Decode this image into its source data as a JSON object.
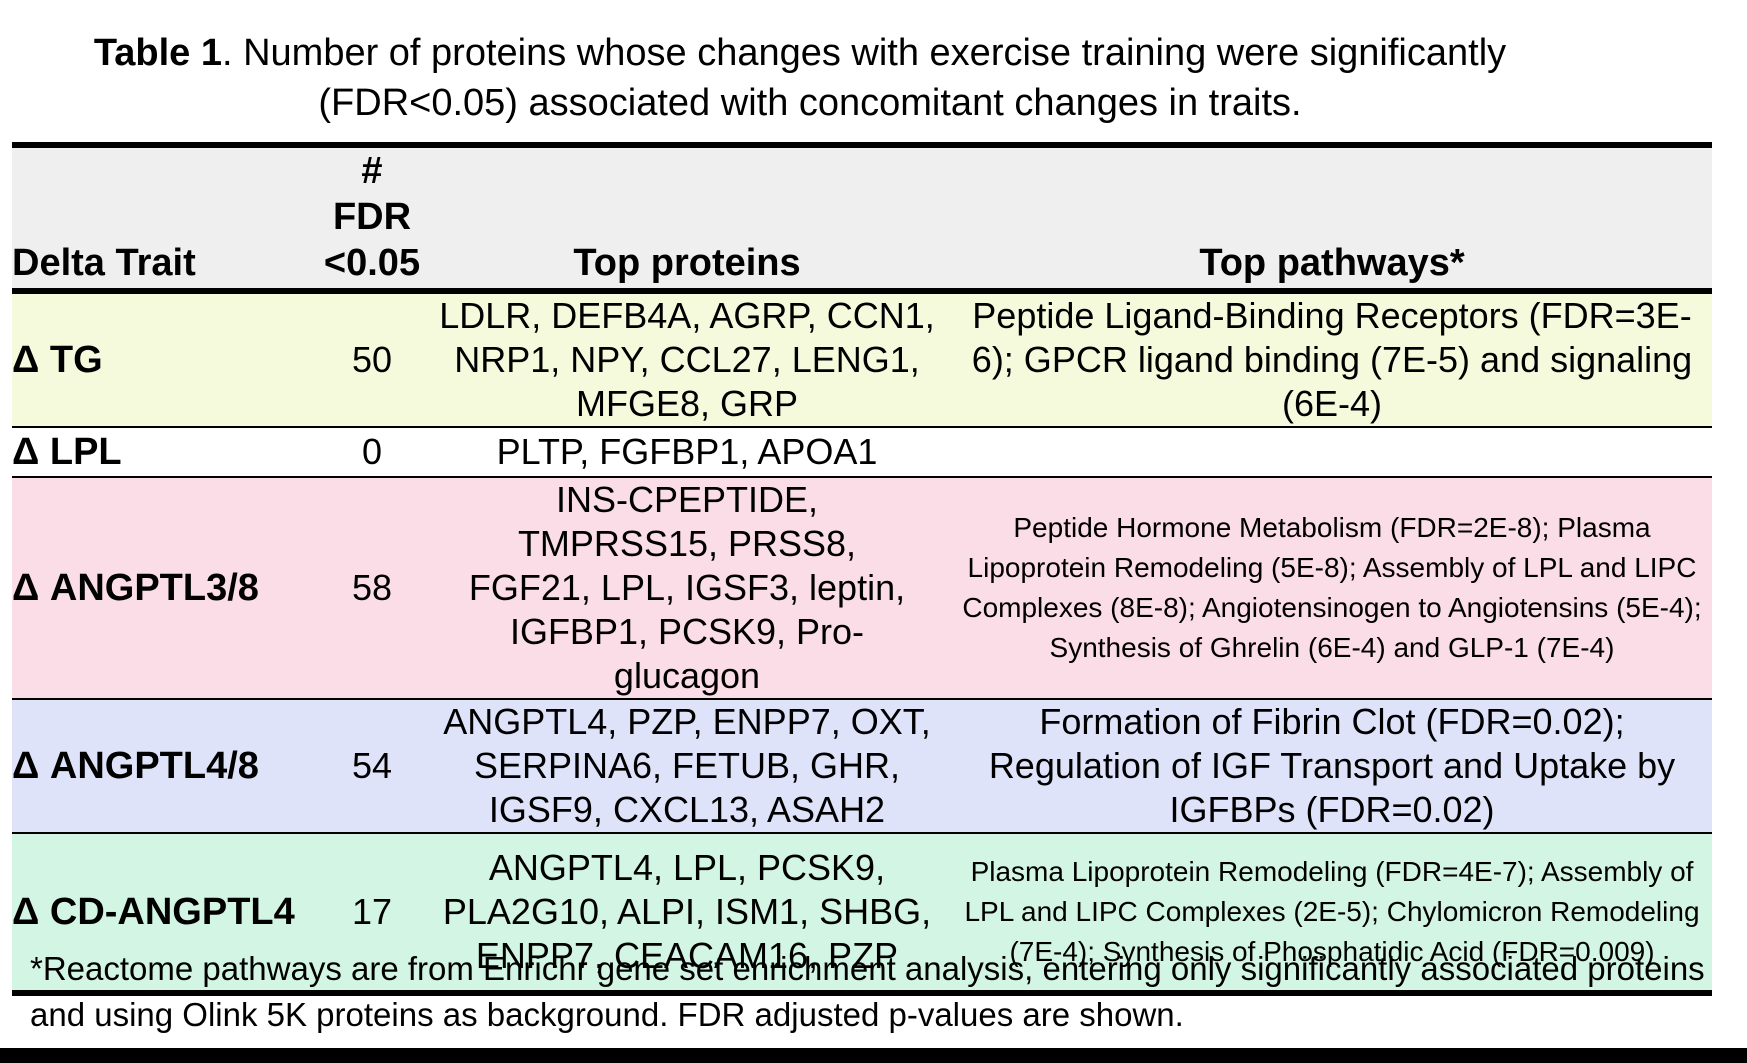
{
  "caption": {
    "label": "Table 1",
    "text1": ". Number of proteins whose changes with exercise training were significantly",
    "text2": "(FDR<0.05) associated with concomitant changes in traits."
  },
  "header": {
    "trait": "Delta Trait",
    "fdr_line1": "# FDR",
    "fdr_line2": "<0.05",
    "proteins": "Top proteins",
    "pathways": "Top pathways*"
  },
  "rows": [
    {
      "trait": "Δ TG",
      "count": "50",
      "bg": "#f6fadc",
      "proteins": "LDLR, DEFB4A, AGRP, CCN1, NRP1, NPY, CCL27, LENG1, MFGE8, GRP",
      "pathways": "Peptide Ligand-Binding Receptors (FDR=3E-6); GPCR ligand binding (7E-5) and signaling (6E-4)"
    },
    {
      "trait": "Δ LPL",
      "count": "0",
      "bg": "#ffffff",
      "proteins": "PLTP, FGFBP1, APOA1",
      "pathways": ""
    },
    {
      "trait": "Δ ANGPTL3/8",
      "count": "58",
      "bg": "#fadde6",
      "proteins": "INS-CPEPTIDE, TMPRSS15, PRSS8, FGF21, LPL, IGSF3, leptin, IGFBP1, PCSK9, Pro-glucagon",
      "pathways": "Peptide Hormone Metabolism (FDR=2E-8); Plasma Lipoprotein Remodeling (5E-8); Assembly of LPL and LIPC Complexes (8E-8); Angiotensinogen to Angiotensins (5E-4); Synthesis of Ghrelin (6E-4) and GLP-1 (7E-4)"
    },
    {
      "trait": "Δ ANGPTL4/8",
      "count": "54",
      "bg": "#dfe3fa",
      "proteins": "ANGPTL4, PZP, ENPP7, OXT, SERPINA6, FETUB, GHR, IGSF9, CXCL13, ASAH2",
      "pathways": "Formation of Fibrin Clot (FDR=0.02); Regulation of IGF Transport and Uptake by IGFBPs (FDR=0.02)"
    },
    {
      "trait": "Δ CD-ANGPTL4",
      "count": "17",
      "bg": "#d3f5e3",
      "proteins": "ANGPTL4, LPL, PCSK9, PLA2G10, ALPI, ISM1, SHBG, ENPP7, CEACAM16, PZP",
      "pathways": "Plasma Lipoprotein Remodeling (FDR=4E-7); Assembly of LPL and LIPC Complexes (2E-5); Chylomicron Remodeling (7E-4); Synthesis of Phosphatidic Acid (FDR=0.009)"
    }
  ],
  "footnote": "*Reactome pathways are from Enrichr gene set enrichment analysis, entering only significantly associated proteins and using Olink 5K proteins as background. FDR adjusted p-values are shown."
}
